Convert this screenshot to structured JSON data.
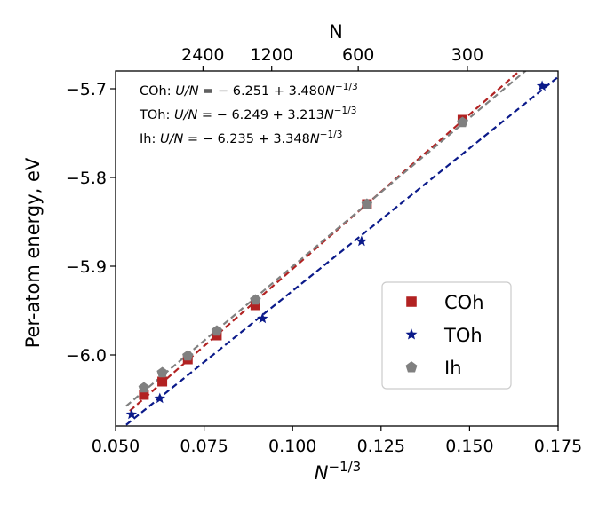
{
  "chart_data": {
    "type": "scatter",
    "xlabel_base": "N",
    "xlabel_sup": "−1/3",
    "ylabel": "Per-atom energy, eV",
    "top_axis_label": "N",
    "xlim": [
      0.05,
      0.175
    ],
    "ylim": [
      -6.08,
      -5.68
    ],
    "xticks": [
      0.05,
      0.075,
      0.1,
      0.125,
      0.15,
      0.175
    ],
    "xtick_labels": [
      "0.050",
      "0.075",
      "0.100",
      "0.125",
      "0.150",
      "0.175"
    ],
    "yticks": [
      -5.7,
      -5.8,
      -5.9,
      -6.0
    ],
    "ytick_labels": [
      "−5.7",
      "−5.8",
      "−5.9",
      "−6.0"
    ],
    "top_ticks": [
      {
        "n": 2400,
        "label": "2400"
      },
      {
        "n": 1200,
        "label": "1200"
      },
      {
        "n": 600,
        "label": "600"
      },
      {
        "n": 300,
        "label": "300"
      }
    ],
    "series": [
      {
        "name": "COh",
        "color": "#b22222",
        "marker": "square",
        "x": [
          0.058,
          0.0632,
          0.0704,
          0.0786,
          0.0895,
          0.121,
          0.148
        ],
        "y": [
          -6.045,
          -6.03,
          -6.005,
          -5.978,
          -5.944,
          -5.83,
          -5.735
        ],
        "fit": {
          "a": -6.251,
          "b": 3.48,
          "x_range": [
            0.054,
            0.166
          ]
        }
      },
      {
        "name": "TOh",
        "color": "#0b1a8a",
        "marker": "star",
        "x": [
          0.0545,
          0.0625,
          0.0915,
          0.1195,
          0.1705
        ],
        "y": [
          -6.067,
          -6.049,
          -5.959,
          -5.872,
          -5.697
        ],
        "fit": {
          "a": -6.249,
          "b": 3.213,
          "x_range": [
            0.053,
            0.175
          ]
        }
      },
      {
        "name": "Ih",
        "color": "#808080",
        "marker": "pentagon",
        "x": [
          0.058,
          0.0632,
          0.0704,
          0.0786,
          0.0895,
          0.121,
          0.148
        ],
        "y": [
          -6.037,
          -6.02,
          -6.001,
          -5.973,
          -5.938,
          -5.83,
          -5.738
        ],
        "fit": {
          "a": -6.235,
          "b": 3.348,
          "x_range": [
            0.053,
            0.166
          ]
        }
      }
    ],
    "annotations": [
      {
        "prefix": "COh: ",
        "lhs": "U/N",
        "mid": " = − 6.251 + 3.480",
        "var": "N",
        "sup": "−1/3"
      },
      {
        "prefix": "TOh: ",
        "lhs": "U/N",
        "mid": " = − 6.249 + 3.213",
        "var": "N",
        "sup": "−1/3"
      },
      {
        "prefix": "Ih: ",
        "lhs": "U/N",
        "mid": " = − 6.235 + 3.348",
        "var": "N",
        "sup": "−1/3"
      }
    ],
    "legend": {
      "position": "lower-right",
      "entries": [
        "COh",
        "TOh",
        "Ih"
      ]
    }
  }
}
